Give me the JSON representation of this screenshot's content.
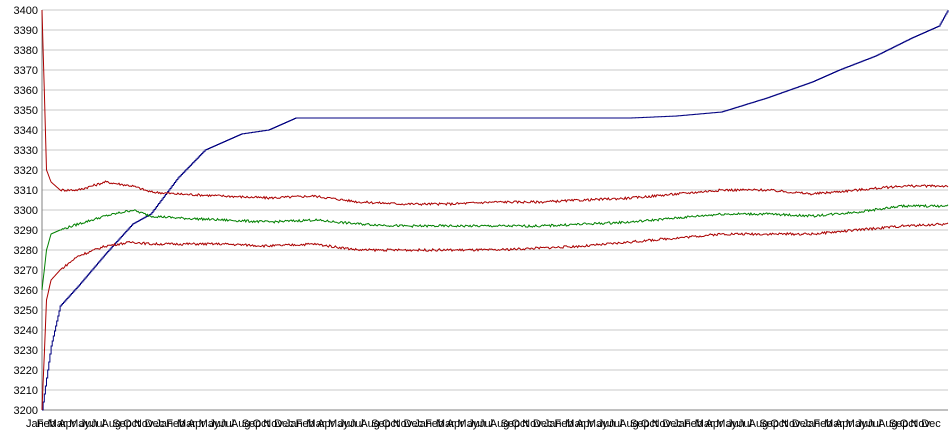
{
  "chart_data": {
    "type": "line",
    "title": "",
    "xlabel": "",
    "ylabel": "",
    "ylim": [
      3200,
      3400
    ],
    "yticks": [
      3200,
      3210,
      3220,
      3230,
      3240,
      3250,
      3260,
      3270,
      3280,
      3290,
      3300,
      3310,
      3320,
      3330,
      3340,
      3350,
      3360,
      3370,
      3380,
      3390,
      3400
    ],
    "grid": true,
    "x_tick_labels_repeating": [
      "Jan",
      "Feb",
      "Mar",
      "Apr",
      "May",
      "Jun",
      "Jul",
      "Aug",
      "Sep",
      "Oct",
      "Nov",
      "Dec"
    ],
    "x_periods": 7,
    "series": [
      {
        "color": "#000080",
        "x": [
          0,
          0.01,
          0.02,
          0.04,
          0.07,
          0.1,
          0.12,
          0.15,
          0.18,
          0.22,
          0.25,
          0.28,
          0.32,
          0.35,
          0.4,
          0.45,
          0.5,
          0.55,
          0.6,
          0.65,
          0.7,
          0.75,
          0.8,
          0.85,
          0.88,
          0.92,
          0.96,
          0.99,
          1.0
        ],
        "values": [
          3200,
          3232,
          3252,
          3262,
          3278,
          3293,
          3298,
          3316,
          3330,
          3338,
          3340,
          3346,
          3346,
          3346,
          3346,
          3346,
          3346,
          3346,
          3346,
          3346,
          3347,
          3349,
          3356,
          3364,
          3370,
          3377,
          3386,
          3392,
          3400
        ]
      },
      {
        "color": "#aa0000",
        "x": [
          0,
          0.005,
          0.01,
          0.02,
          0.04,
          0.07,
          0.1,
          0.12,
          0.15,
          0.2,
          0.25,
          0.3,
          0.35,
          0.4,
          0.45,
          0.5,
          0.55,
          0.6,
          0.65,
          0.7,
          0.75,
          0.8,
          0.85,
          0.9,
          0.95,
          1.0
        ],
        "values": [
          3400,
          3320,
          3314,
          3310,
          3310,
          3314,
          3312,
          3309,
          3308,
          3307,
          3306,
          3307,
          3304,
          3303,
          3303,
          3304,
          3304,
          3305,
          3306,
          3308,
          3310,
          3310,
          3308,
          3310,
          3312,
          3312
        ]
      },
      {
        "color": "#008000",
        "x": [
          0,
          0.005,
          0.01,
          0.02,
          0.04,
          0.07,
          0.1,
          0.12,
          0.15,
          0.2,
          0.25,
          0.3,
          0.35,
          0.4,
          0.45,
          0.5,
          0.55,
          0.6,
          0.65,
          0.7,
          0.75,
          0.8,
          0.85,
          0.9,
          0.95,
          1.0
        ],
        "values": [
          3260,
          3280,
          3288,
          3290,
          3293,
          3297,
          3300,
          3297,
          3296,
          3295,
          3294,
          3295,
          3293,
          3292,
          3292,
          3292,
          3292,
          3293,
          3294,
          3296,
          3298,
          3298,
          3297,
          3299,
          3302,
          3302
        ]
      },
      {
        "color": "#aa0000",
        "x": [
          0,
          0.005,
          0.01,
          0.02,
          0.04,
          0.07,
          0.1,
          0.12,
          0.15,
          0.2,
          0.25,
          0.3,
          0.35,
          0.4,
          0.45,
          0.5,
          0.55,
          0.6,
          0.65,
          0.7,
          0.75,
          0.8,
          0.85,
          0.9,
          0.95,
          1.0
        ],
        "values": [
          3200,
          3255,
          3265,
          3270,
          3277,
          3282,
          3284,
          3283,
          3283,
          3283,
          3282,
          3283,
          3280,
          3280,
          3280,
          3280,
          3281,
          3282,
          3284,
          3286,
          3288,
          3288,
          3288,
          3290,
          3292,
          3293
        ]
      }
    ]
  }
}
